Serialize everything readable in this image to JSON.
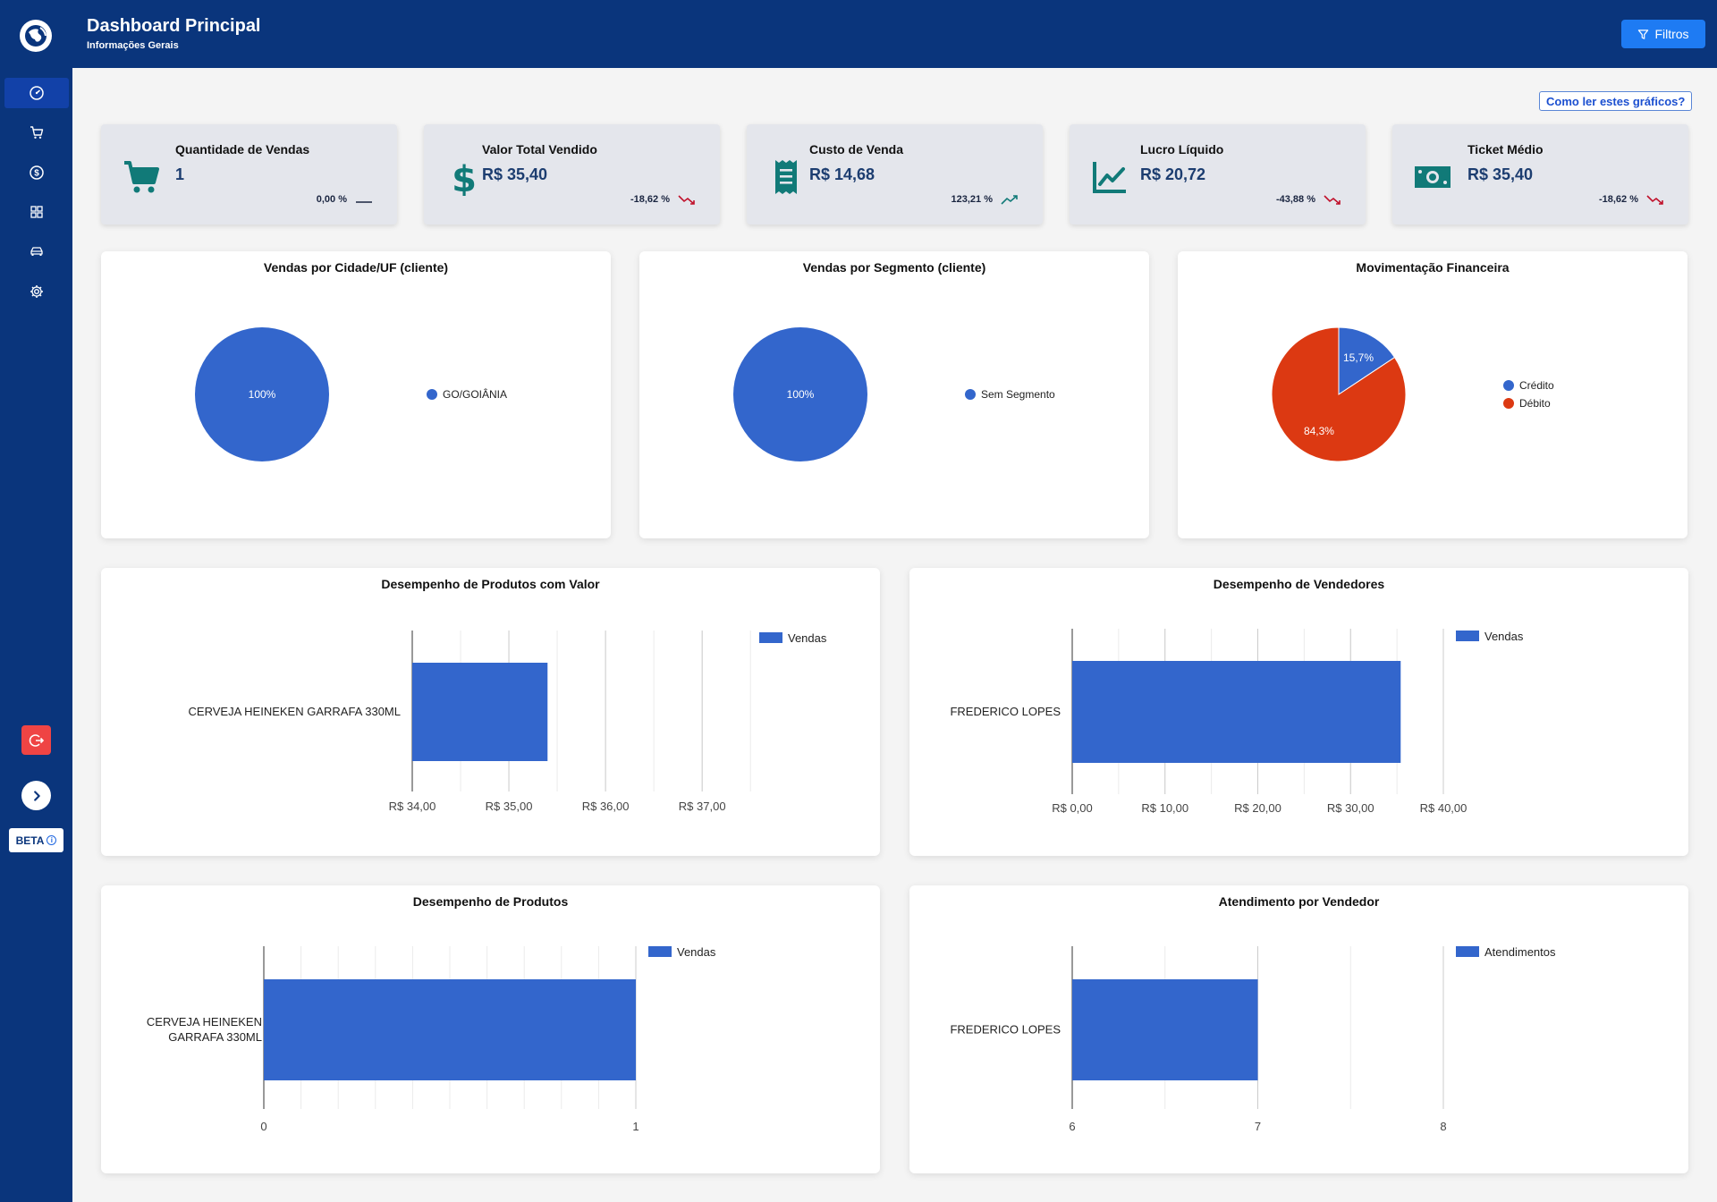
{
  "header": {
    "title": "Dashboard Principal",
    "subtitle": "Informações Gerais",
    "filter_label": "Filtros"
  },
  "sidebar": {
    "items": [
      {
        "icon": "dashboard-gauge-icon",
        "active": true
      },
      {
        "icon": "cart-icon",
        "active": false
      },
      {
        "icon": "dollar-circle-icon",
        "active": false
      },
      {
        "icon": "grid-icon",
        "active": false
      },
      {
        "icon": "car-icon",
        "active": false
      },
      {
        "icon": "gear-icon",
        "active": false
      }
    ],
    "beta_label": "BETA"
  },
  "help_link": "Como ler estes gráficos?",
  "colors": {
    "primary": "#0a357c",
    "accent": "#1e7bf3",
    "bar": "#3366cc",
    "debit": "#dc3912",
    "icon_teal": "#117a78",
    "trend_down": "#c0102a",
    "trend_up": "#117a78"
  },
  "kpis": [
    {
      "title": "Quantidade de Vendas",
      "value": "1",
      "change": "0,00 %",
      "trend": "flat",
      "icon": "shopping-cart-icon"
    },
    {
      "title": "Valor Total Vendido",
      "value": "R$ 35,40",
      "change": "-18,62 %",
      "trend": "down",
      "icon": "dollar-sign-icon"
    },
    {
      "title": "Custo de Venda",
      "value": "R$ 14,68",
      "change": "123,21 %",
      "trend": "up",
      "icon": "receipt-icon"
    },
    {
      "title": "Lucro Líquido",
      "value": "R$ 20,72",
      "change": "-43,88 %",
      "trend": "down",
      "icon": "line-chart-icon"
    },
    {
      "title": "Ticket Médio",
      "value": "R$ 35,40",
      "change": "-18,62 %",
      "trend": "down",
      "icon": "money-bill-icon"
    }
  ],
  "chart_data": [
    {
      "type": "pie",
      "title": "Vendas por Cidade/UF (cliente)",
      "slices": [
        {
          "label": "GO/GOIÂNIA",
          "value": 100,
          "display": "100%",
          "color": "#3366cc"
        }
      ]
    },
    {
      "type": "pie",
      "title": "Vendas por Segmento (cliente)",
      "slices": [
        {
          "label": "Sem Segmento",
          "value": 100,
          "display": "100%",
          "color": "#3366cc"
        }
      ]
    },
    {
      "type": "pie",
      "title": "Movimentação Financeira",
      "slices": [
        {
          "label": "Crédito",
          "value": 15.7,
          "display": "15,7%",
          "color": "#3366cc"
        },
        {
          "label": "Débito",
          "value": 84.3,
          "display": "84,3%",
          "color": "#dc3912"
        }
      ]
    },
    {
      "type": "bar",
      "orientation": "horizontal",
      "title": "Desempenho de Produtos com Valor",
      "categories": [
        "CERVEJA HEINEKEN GARRAFA 330ML"
      ],
      "series": [
        {
          "name": "Vendas",
          "values": [
            35.4
          ]
        }
      ],
      "xlim": [
        34,
        37.6
      ],
      "ticks": [
        34,
        35,
        36,
        37
      ],
      "tick_labels": [
        "R$ 34,00",
        "R$ 35,00",
        "R$ 36,00",
        "R$ 37,00"
      ],
      "legend": "top-right"
    },
    {
      "type": "bar",
      "orientation": "horizontal",
      "title": "Desempenho de Vendedores",
      "categories": [
        "FREDERICO LOPES"
      ],
      "series": [
        {
          "name": "Vendas",
          "values": [
            35.4
          ]
        }
      ],
      "xlim": [
        0,
        40
      ],
      "ticks": [
        0,
        10,
        20,
        30,
        40
      ],
      "tick_labels": [
        "R$ 0,00",
        "R$ 10,00",
        "R$ 20,00",
        "R$ 30,00",
        "R$ 40,00"
      ],
      "legend": "top-right"
    },
    {
      "type": "bar",
      "orientation": "horizontal",
      "title": "Desempenho de Produtos",
      "categories": [
        "CERVEJA HEINEKEN GARRAFA 330ML"
      ],
      "category_lines": [
        [
          "CERVEJA HEINEKEN",
          "GARRAFA 330ML"
        ]
      ],
      "series": [
        {
          "name": "Vendas",
          "values": [
            1
          ]
        }
      ],
      "xlim": [
        0,
        1
      ],
      "ticks": [
        0,
        1
      ],
      "tick_labels": [
        "0",
        "1"
      ],
      "legend": "top-right"
    },
    {
      "type": "bar",
      "orientation": "horizontal",
      "title": "Atendimento por Vendedor",
      "categories": [
        "FREDERICO LOPES"
      ],
      "series": [
        {
          "name": "Atendimentos",
          "values": [
            7
          ]
        }
      ],
      "xlim": [
        6,
        8
      ],
      "ticks": [
        6,
        7,
        8
      ],
      "tick_labels": [
        "6",
        "7",
        "8"
      ],
      "legend": "top-right"
    }
  ]
}
